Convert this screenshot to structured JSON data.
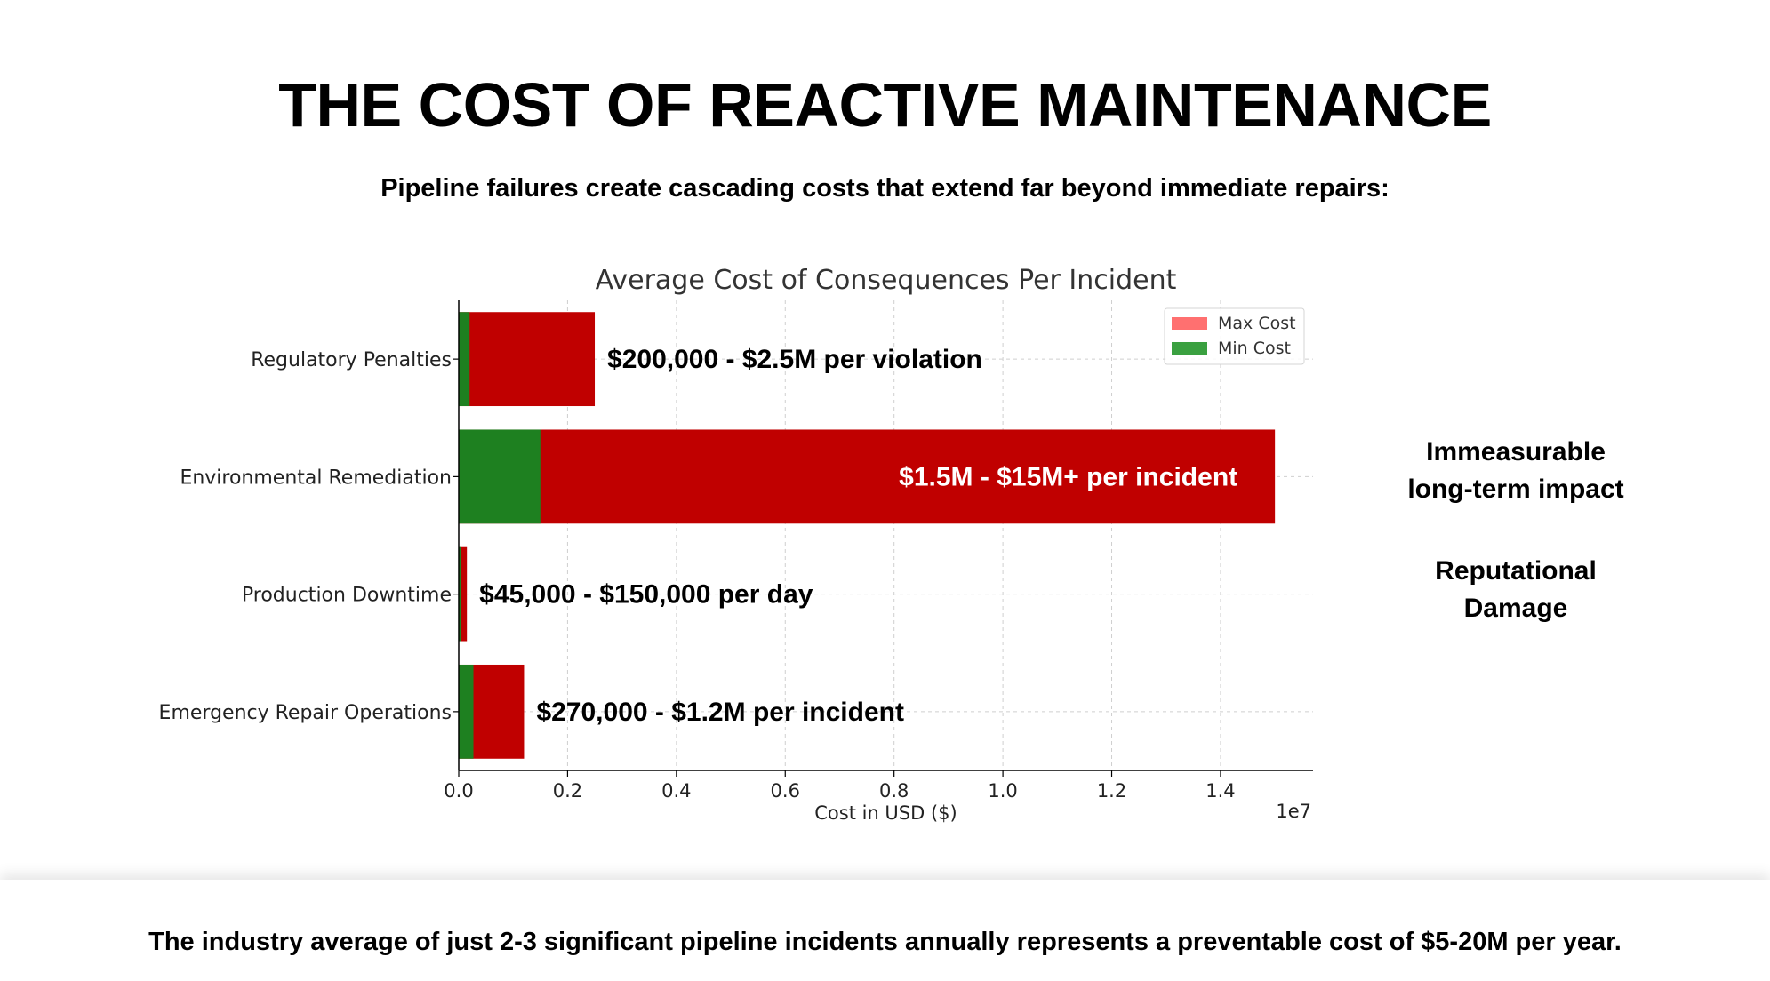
{
  "slide": {
    "title": "THE COST OF REACTIVE MAINTENANCE",
    "subtitle": "Pipeline failures create cascading costs that extend far beyond immediate repairs:",
    "side_notes": [
      "Immeasurable\nlong-term impact",
      "Reputational\nDamage"
    ],
    "footer": "The industry average of just 2-3 significant pipeline incidents annually represents a preventable cost of $5-20M per year."
  },
  "chart_data": {
    "type": "bar",
    "orientation": "horizontal",
    "stacked": "overlay",
    "title": "Average Cost of Consequences Per Incident",
    "xlabel": "Cost in USD ($)",
    "ylabel": "",
    "scale_note": "1e7",
    "xlim": [
      0,
      15700000
    ],
    "xticks": [
      0,
      2000000,
      4000000,
      6000000,
      8000000,
      10000000,
      12000000,
      14000000
    ],
    "xtick_labels": [
      "0.0",
      "0.2",
      "0.4",
      "0.6",
      "0.8",
      "1.0",
      "1.2",
      "1.4"
    ],
    "grid": true,
    "legend_position": "top-right",
    "categories": [
      "Regulatory Penalties",
      "Environmental Remediation",
      "Production Downtime",
      "Emergency Repair Operations"
    ],
    "series": [
      {
        "name": "Max Cost",
        "values": [
          2500000,
          15000000,
          150000,
          1200000
        ],
        "color": "#c00000",
        "legend_color": "#ff7070"
      },
      {
        "name": "Min Cost",
        "values": [
          200000,
          1500000,
          45000,
          270000
        ],
        "color": "#1e8020",
        "legend_color": "#3aa040"
      }
    ],
    "bar_labels": [
      {
        "text": "$200,000 - $2.5M per violation",
        "placement": "outside",
        "color": "#000000"
      },
      {
        "text": "$1.5M - $15M+ per incident",
        "placement": "inside",
        "color": "#ffffff"
      },
      {
        "text": "$45,000 - $150,000 per day",
        "placement": "outside",
        "color": "#000000"
      },
      {
        "text": "$270,000 - $1.2M per incident",
        "placement": "outside",
        "color": "#000000"
      }
    ]
  }
}
